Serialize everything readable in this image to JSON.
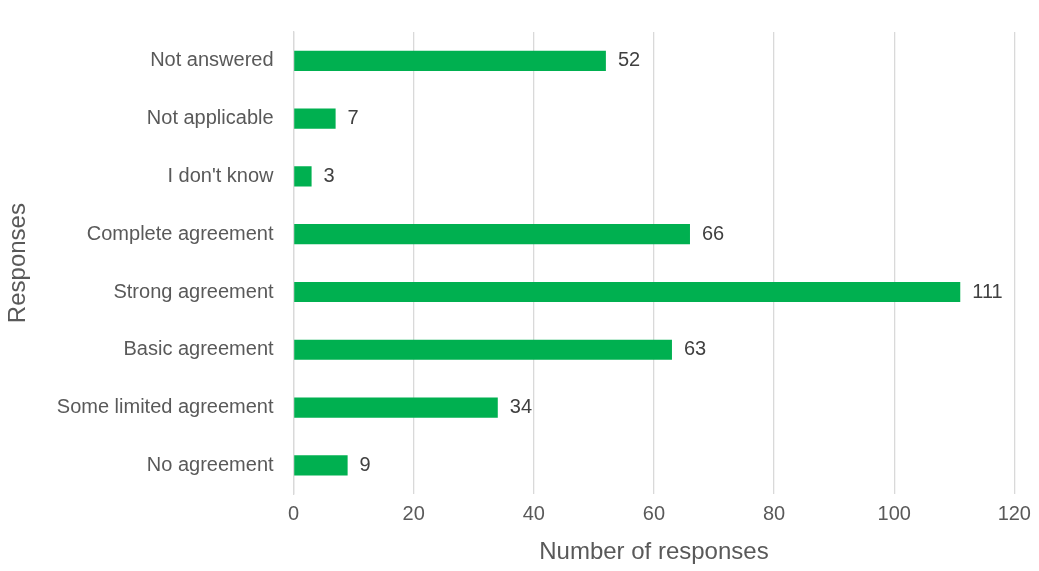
{
  "chart_data": {
    "type": "bar",
    "orientation": "horizontal",
    "xlabel": "Number of responses",
    "ylabel": "Responses",
    "categories": [
      "Not answered",
      "Not applicable",
      "I don't know",
      "Complete agreement",
      "Strong agreement",
      "Basic agreement",
      "Some limited agreement",
      "No agreement"
    ],
    "values": [
      52,
      7,
      3,
      66,
      111,
      63,
      34,
      9
    ],
    "color": "#00b050",
    "xlim": [
      0,
      120
    ],
    "xticks": [
      0,
      20,
      40,
      60,
      80,
      100,
      120
    ],
    "grid": "x",
    "data_labels": true
  }
}
